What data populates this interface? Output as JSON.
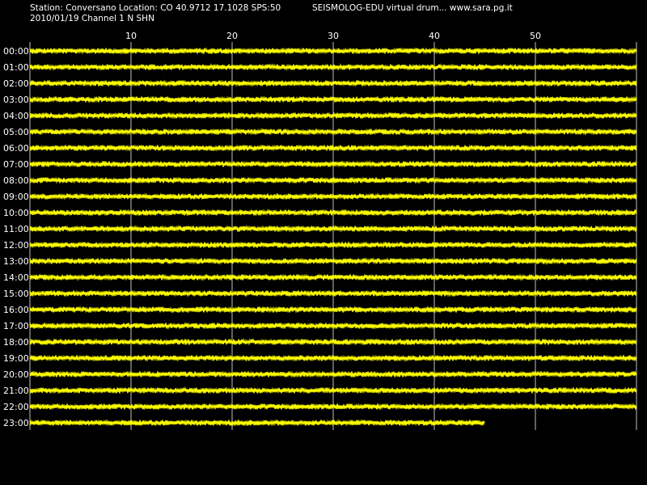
{
  "header": {
    "station_line": "Station: Conversano Location: CO 40.9712 17.1028 SPS:50",
    "app_line": "SEISMOLOG-EDU virtual drum... www.sara.pg.it",
    "date_line": "2010/01/19  Channel 1 N SHN"
  },
  "colors": {
    "background": "#000000",
    "trace": "#ffff00",
    "grid": "#c0c0c0",
    "text": "#ffffff"
  },
  "chart_data": {
    "type": "line",
    "title": "",
    "xlabel": "",
    "ylabel": "",
    "x_ticks": [
      "10",
      "20",
      "30",
      "40",
      "50"
    ],
    "x_tick_values": [
      10,
      20,
      30,
      40,
      50
    ],
    "xlim": [
      0,
      60
    ],
    "grid": true,
    "rows": [
      {
        "label": "00:00",
        "end_minute": 60
      },
      {
        "label": "01:00",
        "end_minute": 60
      },
      {
        "label": "02:00",
        "end_minute": 60
      },
      {
        "label": "03:00",
        "end_minute": 60
      },
      {
        "label": "04:00",
        "end_minute": 60
      },
      {
        "label": "05:00",
        "end_minute": 60
      },
      {
        "label": "06:00",
        "end_minute": 60
      },
      {
        "label": "07:00",
        "end_minute": 60
      },
      {
        "label": "08:00",
        "end_minute": 60
      },
      {
        "label": "09:00",
        "end_minute": 60
      },
      {
        "label": "10:00",
        "end_minute": 60
      },
      {
        "label": "11:00",
        "end_minute": 60
      },
      {
        "label": "12:00",
        "end_minute": 60
      },
      {
        "label": "13:00",
        "end_minute": 60
      },
      {
        "label": "14:00",
        "end_minute": 60
      },
      {
        "label": "15:00",
        "end_minute": 60
      },
      {
        "label": "16:00",
        "end_minute": 60
      },
      {
        "label": "17:00",
        "end_minute": 60
      },
      {
        "label": "18:00",
        "end_minute": 60
      },
      {
        "label": "19:00",
        "end_minute": 60
      },
      {
        "label": "20:00",
        "end_minute": 60
      },
      {
        "label": "21:00",
        "end_minute": 60
      },
      {
        "label": "22:00",
        "end_minute": 60
      },
      {
        "label": "23:00",
        "end_minute": 45
      }
    ]
  }
}
